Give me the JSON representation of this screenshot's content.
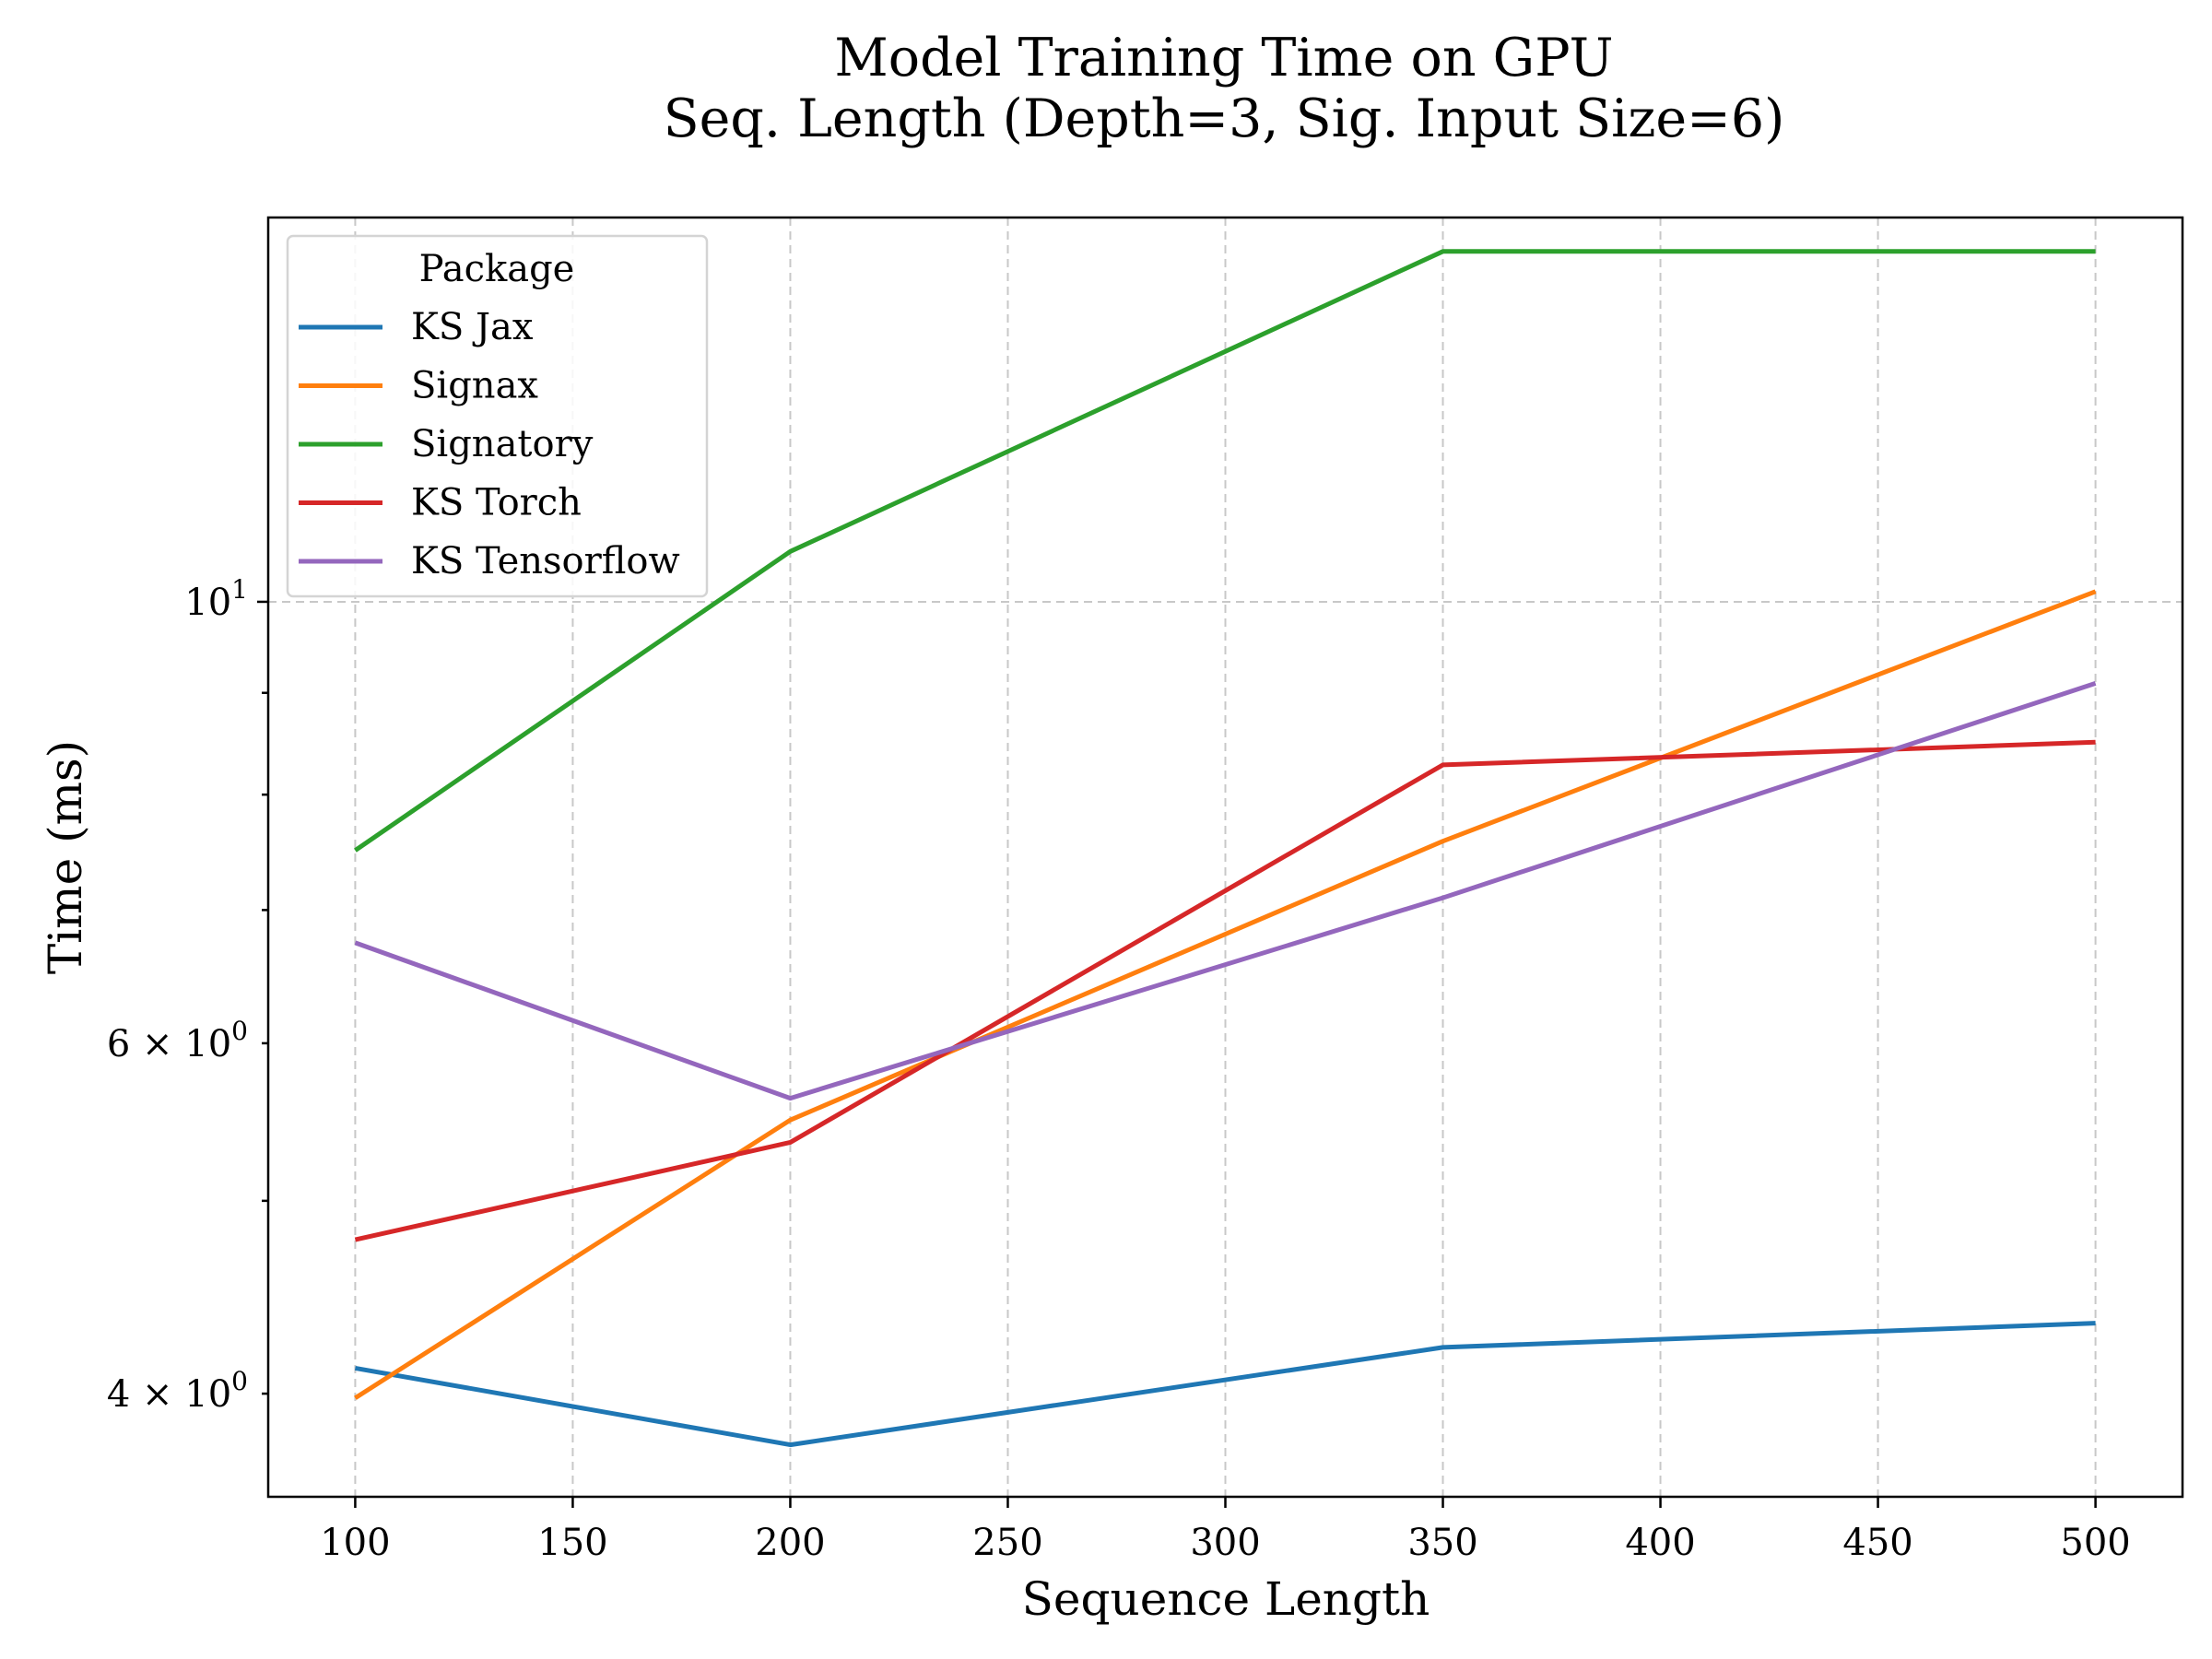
{
  "chart_data": {
    "type": "line",
    "title": "Model Training Time on GPU",
    "subtitle": "Seq. Length (Depth=3, Sig. Input Size=6)",
    "xlabel": "Sequence Length",
    "ylabel": "Time (ms)",
    "x": [
      100,
      200,
      350,
      500
    ],
    "xlim": [
      80,
      520
    ],
    "ylim": [
      3.55,
      15.6
    ],
    "yscale": "log",
    "x_ticks": [
      100,
      150,
      200,
      250,
      300,
      350,
      400,
      450,
      500
    ],
    "y_major_ticks": [
      {
        "value": 10,
        "label": "10",
        "exp": "1"
      }
    ],
    "y_minor_ticks": [
      {
        "value": 4,
        "label": "4 × 10",
        "exp": "0"
      },
      {
        "value": 5,
        "label": "",
        "exp": ""
      },
      {
        "value": 6,
        "label": "6 × 10",
        "exp": "0"
      },
      {
        "value": 7,
        "label": "",
        "exp": ""
      },
      {
        "value": 8,
        "label": "",
        "exp": ""
      },
      {
        "value": 9,
        "label": "",
        "exp": ""
      }
    ],
    "grid": true,
    "legend": {
      "title": "Package",
      "position": "upper-left"
    },
    "series": [
      {
        "name": "KS Jax",
        "color": "#1f77b4",
        "values": [
          4.12,
          3.77,
          4.22,
          4.34
        ]
      },
      {
        "name": "Signax",
        "color": "#ff7f0e",
        "values": [
          3.98,
          5.49,
          7.58,
          10.12
        ]
      },
      {
        "name": "Signatory",
        "color": "#2ca02c",
        "values": [
          7.5,
          10.6,
          15.0,
          15.0
        ]
      },
      {
        "name": "KS Torch",
        "color": "#d62728",
        "values": [
          4.78,
          5.35,
          8.28,
          8.5
        ]
      },
      {
        "name": "KS Tensorflow",
        "color": "#9467bd",
        "values": [
          6.74,
          5.63,
          7.1,
          9.1
        ]
      }
    ]
  }
}
